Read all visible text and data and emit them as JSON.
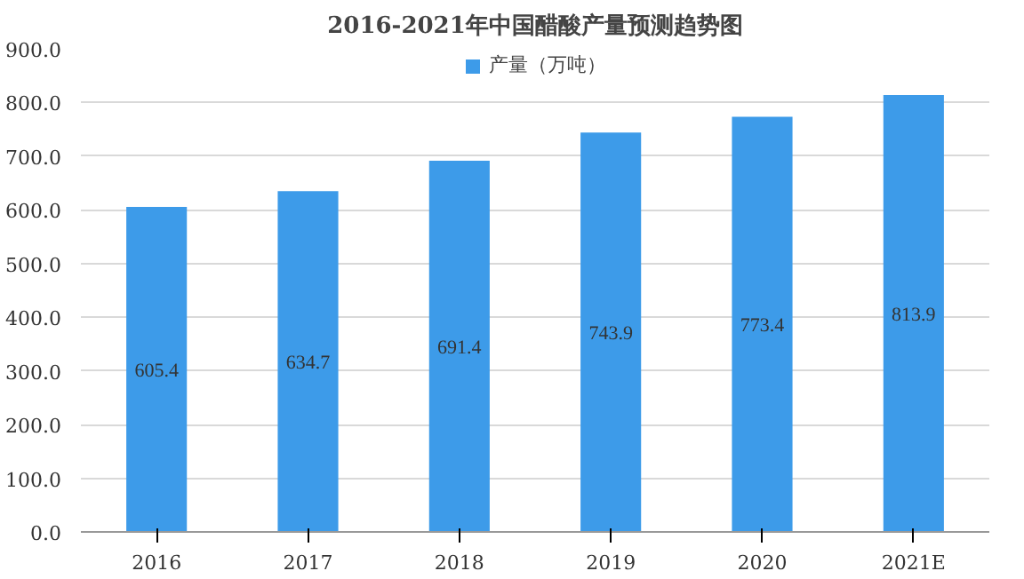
{
  "chart_data": {
    "type": "bar",
    "title": "2016-2021年中国醋酸产量预测趋势图",
    "categories": [
      "2016",
      "2017",
      "2018",
      "2019",
      "2020",
      "2021E"
    ],
    "series": [
      {
        "name": "产量（万吨）",
        "color": "#3d9be9",
        "values": [
          605.4,
          634.7,
          691.4,
          743.9,
          773.4,
          813.9
        ]
      }
    ],
    "ylim": [
      0,
      900
    ],
    "yticks": [
      {
        "value": 0,
        "label": "0.0"
      },
      {
        "value": 100,
        "label": "100.0"
      },
      {
        "value": 200,
        "label": "200.0"
      },
      {
        "value": 300,
        "label": "300.0"
      },
      {
        "value": 400,
        "label": "400.0"
      },
      {
        "value": 500,
        "label": "500.0"
      },
      {
        "value": 600,
        "label": "600.0"
      },
      {
        "value": 700,
        "label": "700.0"
      },
      {
        "value": 800,
        "label": "800.0"
      },
      {
        "value": 900,
        "label": "900.0"
      }
    ],
    "grid": "y",
    "legend": "top",
    "data_labels": true
  }
}
